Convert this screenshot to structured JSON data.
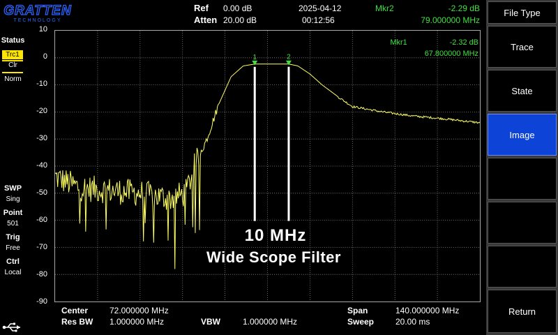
{
  "brand": {
    "logo_text": "GRATTEN",
    "logo_subtext": "TECHNOLOGY"
  },
  "header": {
    "ref_label": "Ref",
    "ref_value": "0.00 dB",
    "atten_label": "Atten",
    "atten_value": "20.00 dB",
    "date": "2025-04-12",
    "time": "00:12:56"
  },
  "markers": [
    {
      "label": "Mkr1",
      "amplitude": "-2.32 dB",
      "frequency": "67.800000 MHz",
      "freq_mhz": 67.8,
      "amp_db": -2.32,
      "id": "1"
    },
    {
      "label": "Mkr2",
      "amplitude": "-2.29 dB",
      "frequency": "79.000000 MHz",
      "freq_mhz": 79.0,
      "amp_db": -2.29,
      "id": "2"
    }
  ],
  "status": {
    "title": "Status",
    "trace_badge": "Trc1",
    "trace_mode": "Clr",
    "detector": "Norm",
    "swp_label": "SWP",
    "swp_value": "Sing",
    "point_label": "Point",
    "point_value": "501",
    "trig_label": "Trig",
    "trig_value": "Free",
    "ctrl_label": "Ctrl",
    "ctrl_value": "Local"
  },
  "chart_data": {
    "type": "line",
    "xlim": [
      2,
      142
    ],
    "ylim": [
      -90,
      10
    ],
    "xunit": "MHz",
    "yunit": "dB",
    "y_ticks": [
      "10",
      "0",
      "-10",
      "-20",
      "-30",
      "-40",
      "-50",
      "-60",
      "-70",
      "-80",
      "-90"
    ],
    "grid": true,
    "trace_color": "#ffff66",
    "series": [
      {
        "x": [
          2,
          10,
          20,
          30,
          40,
          45,
          48,
          52,
          56,
          60,
          64,
          67.8,
          72,
          76,
          79,
          82,
          86,
          90,
          96,
          100,
          110,
          120,
          130,
          142
        ],
        "values": [
          -44,
          -48,
          -49,
          -50,
          -52,
          -50,
          -40,
          -30,
          -17,
          -7,
          -3,
          -2.32,
          -2.3,
          -2.3,
          -2.29,
          -3,
          -6,
          -10,
          -15,
          -18,
          -20,
          -21.5,
          -22.5,
          -24
        ]
      }
    ]
  },
  "bottom": {
    "center_label": "Center",
    "center_value": "72.000000 MHz",
    "resbw_label": "Res BW",
    "resbw_value": "1.000000 MHz",
    "vbw_label": "VBW",
    "vbw_value": "1.000000 MHz",
    "span_label": "Span",
    "span_value": "140.000000 MHz",
    "sweep_label": "Sweep",
    "sweep_value": "20.00 ms"
  },
  "overlay": {
    "line1": "10 MHz",
    "line2": "Wide Scope Filter"
  },
  "softkeys": {
    "title": "File Type",
    "items": [
      {
        "label": "Trace",
        "active": false
      },
      {
        "label": "State",
        "active": false
      },
      {
        "label": "Image",
        "active": true
      },
      {
        "label": "",
        "active": false
      },
      {
        "label": "",
        "active": false
      },
      {
        "label": "",
        "active": false
      },
      {
        "label": "Return",
        "active": false
      }
    ]
  },
  "colors": {
    "accent_green": "#3fe03f",
    "trace_yellow": "#ffff66",
    "active_softkey": "#0d43d6"
  }
}
